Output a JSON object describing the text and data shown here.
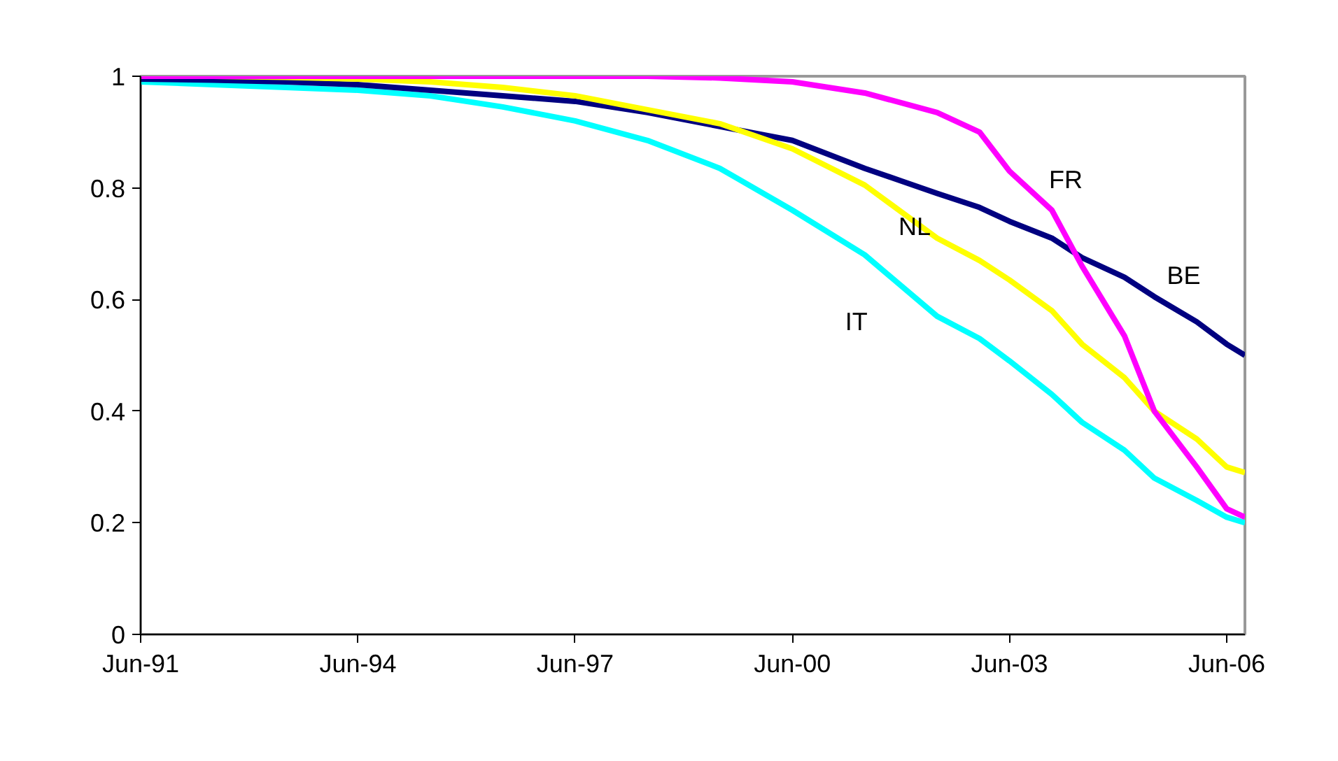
{
  "chart_data": {
    "type": "line",
    "x": [
      "1991-06",
      "1992-06",
      "1993-06",
      "1994-06",
      "1995-06",
      "1996-06",
      "1997-06",
      "1998-06",
      "1999-06",
      "2000-06",
      "2001-06",
      "2002-06",
      "2003-01",
      "2003-06",
      "2004-01",
      "2004-06",
      "2005-01",
      "2005-06",
      "2006-01",
      "2006-06",
      "2006-09"
    ],
    "series": [
      {
        "name": "IT",
        "color": "#00ffff",
        "values": [
          0.99,
          0.985,
          0.98,
          0.975,
          0.965,
          0.945,
          0.92,
          0.885,
          0.835,
          0.76,
          0.68,
          0.57,
          0.53,
          0.49,
          0.43,
          0.38,
          0.33,
          0.28,
          0.24,
          0.21,
          0.2
        ]
      },
      {
        "name": "BE",
        "color": "#000080",
        "values": [
          0.995,
          0.993,
          0.99,
          0.985,
          0.975,
          0.965,
          0.955,
          0.935,
          0.91,
          0.885,
          0.835,
          0.79,
          0.765,
          0.74,
          0.71,
          0.675,
          0.64,
          0.605,
          0.56,
          0.52,
          0.5
        ]
      },
      {
        "name": "NL",
        "color": "#ffff00",
        "values": [
          1,
          1,
          0.998,
          0.995,
          0.99,
          0.98,
          0.965,
          0.94,
          0.915,
          0.87,
          0.805,
          0.71,
          0.67,
          0.635,
          0.58,
          0.52,
          0.46,
          0.4,
          0.35,
          0.3,
          0.29
        ]
      },
      {
        "name": "FR",
        "color": "#ff00ff",
        "values": [
          1,
          1,
          1,
          1,
          1,
          1,
          1,
          1,
          0.997,
          0.99,
          0.97,
          0.935,
          0.9,
          0.83,
          0.76,
          0.66,
          0.535,
          0.4,
          0.3,
          0.225,
          0.21
        ]
      }
    ],
    "xlim": [
      "1991-06",
      "2006-09"
    ],
    "xticks": [
      {
        "value": "1991-06",
        "label": "Jun-91"
      },
      {
        "value": "1994-06",
        "label": "Jun-94"
      },
      {
        "value": "1997-06",
        "label": "Jun-97"
      },
      {
        "value": "2000-06",
        "label": "Jun-00"
      },
      {
        "value": "2003-06",
        "label": "Jun-03"
      },
      {
        "value": "2006-06",
        "label": "Jun-06"
      }
    ],
    "ylim": [
      0,
      1
    ],
    "yticks": [
      0,
      0.2,
      0.4,
      0.6,
      0.8,
      1
    ],
    "grid": false,
    "legend": false,
    "marker": "none",
    "line_style": "solid"
  }
}
